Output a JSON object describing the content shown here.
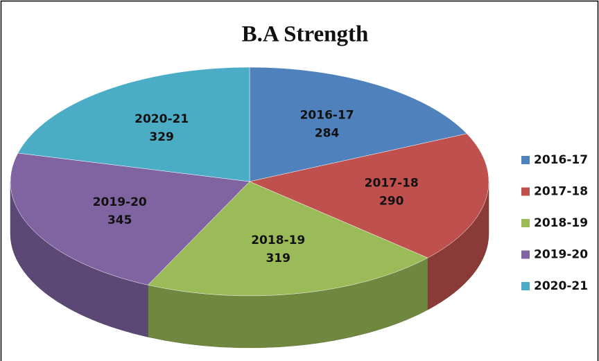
{
  "chart_data": {
    "type": "pie",
    "title": "B.A Strength",
    "categories": [
      "2016-17",
      "2017-18",
      "2018-19",
      "2019-20",
      "2020-21"
    ],
    "values": [
      284,
      290,
      319,
      345,
      329
    ],
    "colors": [
      "#4f81bd",
      "#c0504d",
      "#9bbb59",
      "#8064a2",
      "#4bacc6"
    ],
    "legend": "right"
  }
}
